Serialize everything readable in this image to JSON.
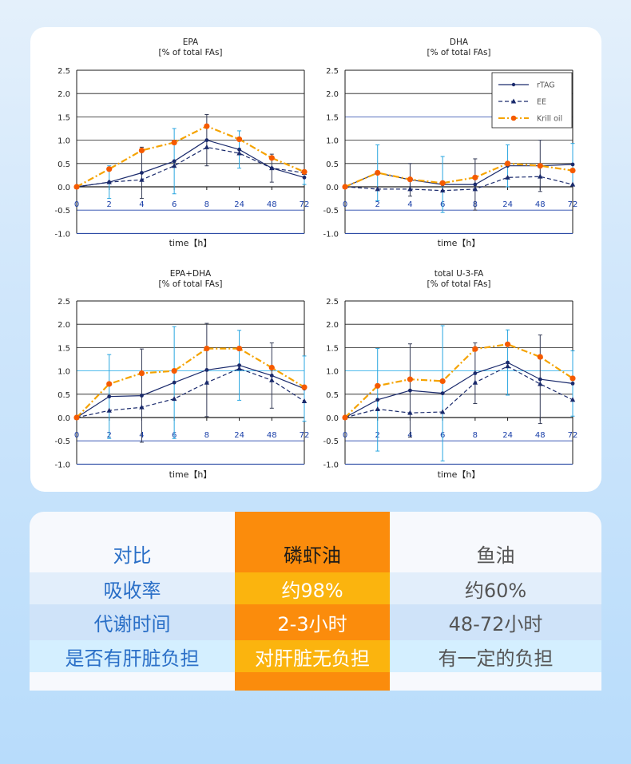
{
  "chart_data": [
    {
      "type": "line",
      "title": "EPA",
      "subtitle": "[% of total FAs]",
      "xlabel": "time【h】",
      "categories": [
        "0",
        "2",
        "4",
        "6",
        "8",
        "24",
        "48",
        "72"
      ],
      "ylim": [
        -1.0,
        2.5
      ],
      "yticks": [
        "2.5",
        "2.0",
        "1.5",
        "1.0",
        "0.5",
        "0.0",
        "-0.5",
        "-1.0"
      ],
      "grid": true,
      "series": [
        {
          "key": "rtag",
          "values": [
            0.0,
            0.1,
            0.3,
            0.55,
            1.0,
            0.8,
            0.4,
            0.2
          ]
        },
        {
          "key": "ee",
          "values": [
            0.0,
            0.1,
            0.15,
            0.45,
            0.85,
            0.72,
            0.4,
            0.3
          ]
        },
        {
          "key": "krill",
          "values": [
            0.0,
            0.38,
            0.78,
            0.95,
            1.3,
            1.02,
            0.62,
            0.32
          ]
        }
      ]
    },
    {
      "type": "line",
      "title": "DHA",
      "subtitle": "[% of total FAs]",
      "xlabel": "time【h】",
      "categories": [
        "0",
        "2",
        "4",
        "6",
        "8",
        "24",
        "48",
        "72"
      ],
      "ylim": [
        -1.0,
        2.5
      ],
      "yticks": [
        "2.5",
        "2.0",
        "1.5",
        "1.0",
        "0.5",
        "0.0",
        "-0.5",
        "-1.0"
      ],
      "grid": true,
      "legend_position": "top-right",
      "series": [
        {
          "key": "rtag",
          "values": [
            0.0,
            0.3,
            0.15,
            0.05,
            0.05,
            0.45,
            0.45,
            0.48
          ]
        },
        {
          "key": "ee",
          "values": [
            0.0,
            -0.05,
            -0.05,
            -0.08,
            -0.05,
            0.2,
            0.22,
            0.05
          ]
        },
        {
          "key": "krill",
          "values": [
            0.0,
            0.3,
            0.16,
            0.08,
            0.2,
            0.5,
            0.45,
            0.35
          ]
        }
      ]
    },
    {
      "type": "line",
      "title": "EPA+DHA",
      "subtitle": "[% of total FAs]",
      "xlabel": "time【h】",
      "categories": [
        "0",
        "2",
        "4",
        "6",
        "8",
        "24",
        "48",
        "72"
      ],
      "ylim": [
        -1.0,
        2.5
      ],
      "yticks": [
        "2.5",
        "2.0",
        "1.5",
        "1.0",
        "0.5",
        "0.0",
        "-0.5",
        "-1.0"
      ],
      "grid": true,
      "series": [
        {
          "key": "rtag",
          "values": [
            0.0,
            0.45,
            0.47,
            0.75,
            1.02,
            1.12,
            0.9,
            0.62
          ]
        },
        {
          "key": "ee",
          "values": [
            0.0,
            0.15,
            0.22,
            0.4,
            0.75,
            1.05,
            0.8,
            0.35
          ]
        },
        {
          "key": "krill",
          "values": [
            0.0,
            0.72,
            0.95,
            1.0,
            1.48,
            1.48,
            1.07,
            0.65
          ]
        }
      ]
    },
    {
      "type": "line",
      "title": "total U-3-FA",
      "subtitle": "[% of total FAs]",
      "xlabel": "time【h】",
      "categories": [
        "0",
        "2",
        "4",
        "6",
        "8",
        "24",
        "48",
        "72"
      ],
      "ylim": [
        -1.0,
        2.5
      ],
      "yticks": [
        "2.5",
        "2.0",
        "1.5",
        "1.0",
        "0.5",
        "0.0",
        "-0.5",
        "-1.0"
      ],
      "grid": true,
      "series": [
        {
          "key": "rtag",
          "values": [
            0.0,
            0.38,
            0.58,
            0.52,
            0.95,
            1.18,
            0.82,
            0.73
          ]
        },
        {
          "key": "ee",
          "values": [
            0.0,
            0.18,
            0.1,
            0.12,
            0.75,
            1.1,
            0.72,
            0.38
          ]
        },
        {
          "key": "krill",
          "values": [
            0.0,
            0.68,
            0.82,
            0.78,
            1.47,
            1.57,
            1.3,
            0.84
          ]
        }
      ]
    }
  ],
  "legend": [
    {
      "key": "rtag",
      "label": "rTAG",
      "color": "#1a2a6c",
      "dash": "solid",
      "marker": "dot"
    },
    {
      "key": "ee",
      "label": "EE",
      "color": "#1a2a6c",
      "dash": "dashed",
      "marker": "triangle"
    },
    {
      "key": "krill",
      "label": "Krill oil",
      "color": "#f5a300",
      "marker_color": "#f55a00",
      "dash": "dashdot",
      "marker": "dot"
    }
  ],
  "comparison_table": {
    "rows": [
      {
        "label": "对比",
        "krill": "磷虾油",
        "fish": "鱼油"
      },
      {
        "label": "吸收率",
        "krill": "约98%",
        "fish": "约60%"
      },
      {
        "label": "代谢时间",
        "krill": "2-3小时",
        "fish": "48-72小时"
      },
      {
        "label": "是否有肝脏负担",
        "krill": "对肝脏无负担",
        "fish": "有一定的负担"
      }
    ]
  },
  "colors": {
    "axis_blue": "#1a3fa8",
    "errorbar_cyan": "#29a6e0",
    "highlight_orange": "#fb8c0c",
    "highlight_yellow": "#fbb40e",
    "label_blue": "#2a6fc7"
  }
}
